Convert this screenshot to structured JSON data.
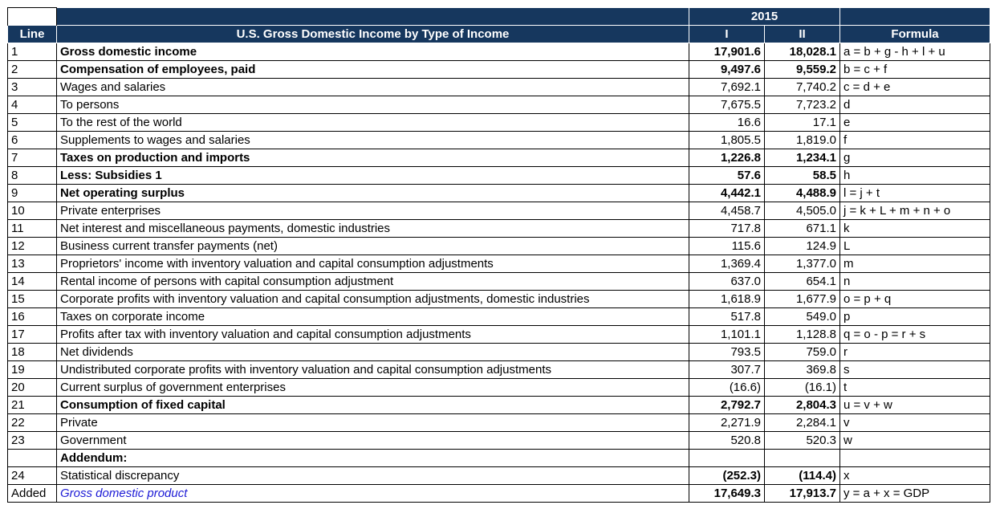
{
  "header": {
    "line_label": "Line",
    "title": "U.S. Gross Domestic Income by Type of Income",
    "year": "2015",
    "col_q1": "I",
    "col_q2": "II",
    "formula_label": "Formula"
  },
  "rows": [
    {
      "line": "1",
      "desc": "Gross domestic income",
      "q1": "17,901.6",
      "q2": "18,028.1",
      "formula": "a = b + g - h + l + u"
    },
    {
      "line": "2",
      "desc": "Compensation of employees, paid",
      "q1": "9,497.6",
      "q2": "9,559.2",
      "formula": "b = c + f"
    },
    {
      "line": "3",
      "desc": "Wages and salaries",
      "q1": "7,692.1",
      "q2": "7,740.2",
      "formula": "c = d + e"
    },
    {
      "line": "4",
      "desc": "To persons",
      "q1": "7,675.5",
      "q2": "7,723.2",
      "formula": "d"
    },
    {
      "line": "5",
      "desc": "To the rest of the world",
      "q1": "16.6",
      "q2": "17.1",
      "formula": "e"
    },
    {
      "line": "6",
      "desc": "Supplements to wages and salaries",
      "q1": "1,805.5",
      "q2": "1,819.0",
      "formula": "f"
    },
    {
      "line": "7",
      "desc": "Taxes on production and imports",
      "q1": "1,226.8",
      "q2": "1,234.1",
      "formula": "g"
    },
    {
      "line": "8",
      "desc": "Less: Subsidies 1",
      "q1": "57.6",
      "q2": "58.5",
      "formula": "h"
    },
    {
      "line": "9",
      "desc": "Net operating surplus",
      "q1": "4,442.1",
      "q2": "4,488.9",
      "formula": "l = j + t"
    },
    {
      "line": "10",
      "desc": "Private enterprises",
      "q1": "4,458.7",
      "q2": "4,505.0",
      "formula": "j = k + L + m + n + o"
    },
    {
      "line": "11",
      "desc": "Net interest and miscellaneous payments, domestic industries",
      "q1": "717.8",
      "q2": "671.1",
      "formula": "k"
    },
    {
      "line": "12",
      "desc": "Business current transfer payments (net)",
      "q1": "115.6",
      "q2": "124.9",
      "formula": "L"
    },
    {
      "line": "13",
      "desc": "Proprietors' income with inventory valuation and capital consumption adjustments",
      "q1": "1,369.4",
      "q2": "1,377.0",
      "formula": "m"
    },
    {
      "line": "14",
      "desc": "Rental income of persons with capital consumption adjustment",
      "q1": "637.0",
      "q2": "654.1",
      "formula": "n"
    },
    {
      "line": "15",
      "desc": "Corporate profits with inventory valuation and capital consumption adjustments, domestic industries",
      "q1": "1,618.9",
      "q2": "1,677.9",
      "formula": "o = p + q"
    },
    {
      "line": "16",
      "desc": "Taxes on corporate income",
      "q1": "517.8",
      "q2": "549.0",
      "formula": "p"
    },
    {
      "line": "17",
      "desc": "Profits after tax with inventory valuation and capital consumption adjustments",
      "q1": "1,101.1",
      "q2": "1,128.8",
      "formula": "q = o - p = r + s"
    },
    {
      "line": "18",
      "desc": "Net dividends",
      "q1": "793.5",
      "q2": "759.0",
      "formula": "r"
    },
    {
      "line": "19",
      "desc": "Undistributed corporate profits with inventory valuation and capital consumption adjustments",
      "q1": "307.7",
      "q2": "369.8",
      "formula": "s"
    },
    {
      "line": "20",
      "desc": "Current surplus of government enterprises",
      "q1": "(16.6)",
      "q2": "(16.1)",
      "formula": "t"
    },
    {
      "line": "21",
      "desc": "Consumption of fixed capital",
      "q1": "2,792.7",
      "q2": "2,804.3",
      "formula": "u = v + w"
    },
    {
      "line": "22",
      "desc": "Private",
      "q1": "2,271.9",
      "q2": "2,284.1",
      "formula": "v"
    },
    {
      "line": "23",
      "desc": "Government",
      "q1": "520.8",
      "q2": "520.3",
      "formula": "w"
    },
    {
      "line": "",
      "desc": "Addendum:",
      "q1": "",
      "q2": "",
      "formula": ""
    },
    {
      "line": "24",
      "desc": "Statistical discrepancy",
      "q1": "(252.3)",
      "q2": "(114.4)",
      "formula": "x"
    },
    {
      "line": "Added",
      "desc": "Gross domestic product",
      "q1": "17,649.3",
      "q2": "17,913.7",
      "formula": "y = a + x = GDP"
    }
  ]
}
